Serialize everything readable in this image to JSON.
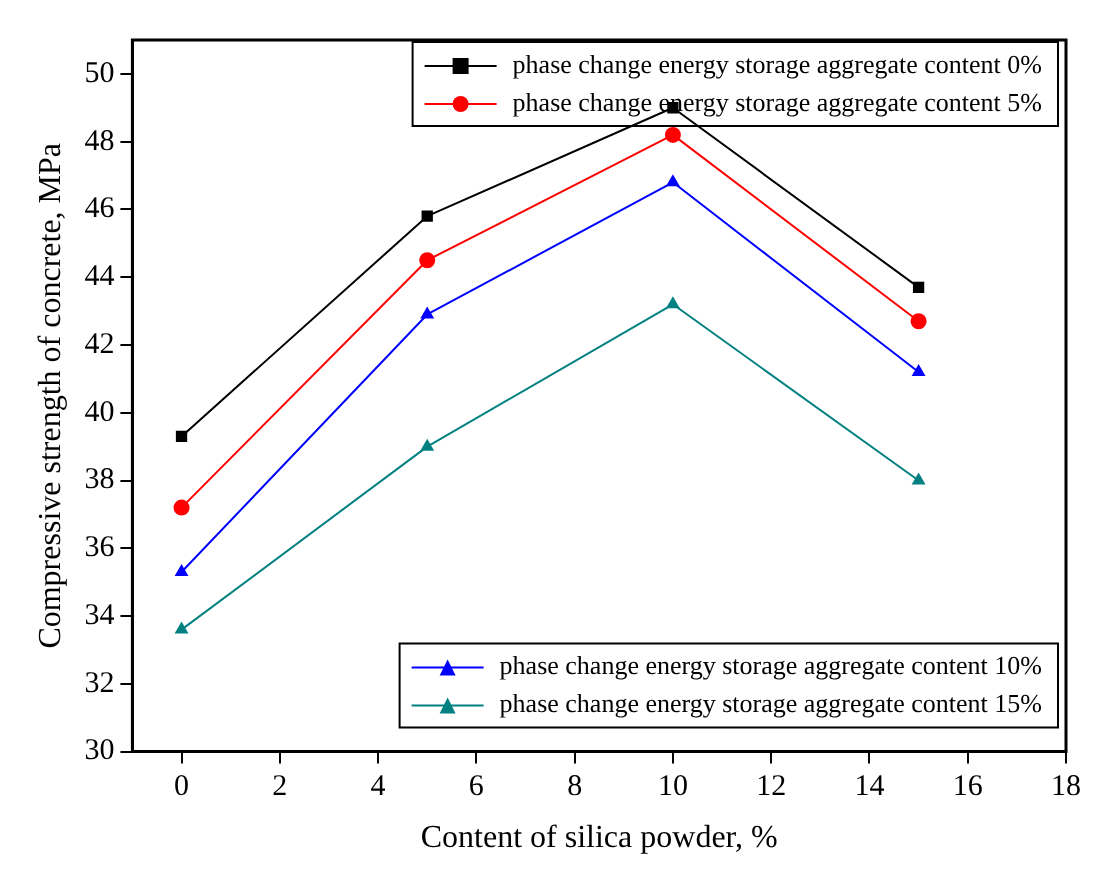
{
  "chart_data": {
    "type": "line",
    "xlabel": "Content of silica powder, %",
    "ylabel": "Compressive strength of concrete, MPa",
    "x": [
      0,
      5,
      10,
      15
    ],
    "xlim": [
      -1,
      18
    ],
    "xticks": [
      0,
      2,
      4,
      6,
      8,
      10,
      12,
      14,
      16,
      18
    ],
    "ylim": [
      30,
      51
    ],
    "yticks": [
      30,
      32,
      34,
      36,
      38,
      40,
      42,
      44,
      46,
      48,
      50
    ],
    "grid": false,
    "legend": "right",
    "line_style": "solid",
    "series": [
      {
        "name": "phase change energy storage aggregate content 0%",
        "color": "#000000",
        "marker": "square",
        "values": [
          39.3,
          45.8,
          49.0,
          43.7
        ]
      },
      {
        "name": "phase change energy storage aggregate content 5%",
        "color": "#ff0000",
        "marker": "circle",
        "values": [
          37.2,
          44.5,
          48.2,
          42.7
        ]
      },
      {
        "name": "phase change energy storage aggregate content 10%",
        "color": "#0000ff",
        "marker": "triangle",
        "values": [
          35.3,
          42.9,
          46.8,
          41.2
        ]
      },
      {
        "name": "phase change energy storage aggregate content 15%",
        "color": "#008080",
        "marker": "triangle",
        "values": [
          33.6,
          39.0,
          43.2,
          38.0
        ]
      }
    ]
  }
}
